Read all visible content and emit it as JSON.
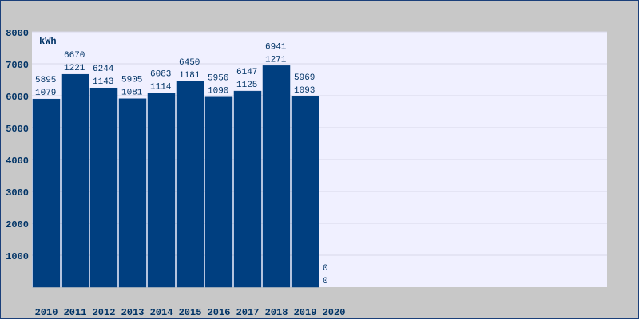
{
  "chart_data": {
    "type": "bar",
    "y_label": "kWh",
    "categories": [
      "2010",
      "2011",
      "2012",
      "2013",
      "2014",
      "2015",
      "2016",
      "2017",
      "2018",
      "2019",
      "2020"
    ],
    "values": [
      5895,
      6670,
      6244,
      5905,
      6083,
      6450,
      5956,
      6147,
      6941,
      5969,
      0
    ],
    "values2": [
      1079,
      1221,
      1143,
      1081,
      1114,
      1181,
      1090,
      1125,
      1271,
      1093,
      0
    ],
    "color": "#003f80",
    "ylim": [
      0,
      8000
    ],
    "yticks": [
      1000,
      2000,
      3000,
      4000,
      5000,
      6000,
      7000,
      8000
    ],
    "grid": true
  }
}
